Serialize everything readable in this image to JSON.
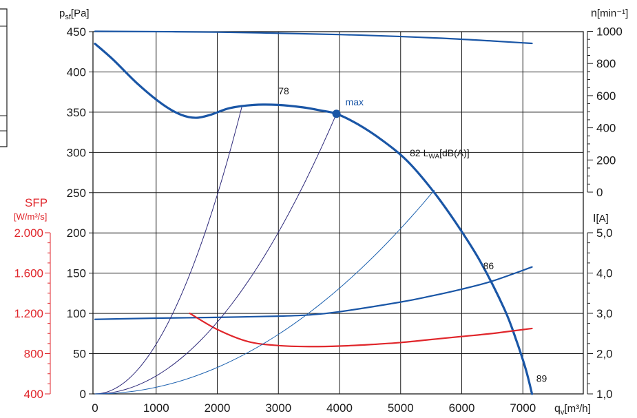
{
  "chart_data": {
    "type": "line",
    "colors": {
      "fan": "#1a56a6",
      "system": "#2e2a7a",
      "system_light": "#1f63b0",
      "sfp": "#e0262b",
      "axis": "#1a1a1a"
    },
    "axes": {
      "x": {
        "label_main": "q",
        "label_sub": "v",
        "label_unit": "[m³/h]",
        "range": [
          0,
          7500
        ],
        "ticks": [
          "0",
          "1000",
          "2000",
          "3000",
          "4000",
          "5000",
          "6000",
          "7000"
        ],
        "tick_values": [
          0,
          1000,
          2000,
          3000,
          4000,
          5000,
          6000,
          7000
        ]
      },
      "y_pressure": {
        "label_main": "p",
        "label_sub": "sf",
        "label_unit": "[Pa]",
        "range": [
          0,
          450
        ],
        "ticks": [
          "0",
          "50",
          "100",
          "150",
          "200",
          "250",
          "300",
          "350",
          "400",
          "450"
        ],
        "tick_values": [
          0,
          50,
          100,
          150,
          200,
          250,
          300,
          350,
          400,
          450
        ]
      },
      "y_speed": {
        "label_main": "n",
        "label_unit": "[min⁻¹]",
        "range": [
          0,
          1000
        ],
        "ticks": [
          "0",
          "200",
          "400",
          "600",
          "800",
          "1000"
        ],
        "tick_values": [
          0,
          200,
          400,
          600,
          800,
          1000
        ]
      },
      "y_current": {
        "label_main": "I",
        "label_unit": "[A]",
        "range": [
          1.0,
          5.0
        ],
        "ticks": [
          "1,0",
          "2,0",
          "3,0",
          "4,0",
          "5,0"
        ],
        "tick_values": [
          1,
          2,
          3,
          4,
          5
        ]
      },
      "y_sfp": {
        "label_main": "SFP",
        "label_unit": "[W/m³/s]",
        "range": [
          400,
          2000
        ],
        "ticks": [
          "400",
          "800",
          "1.200",
          "1.600",
          "2.000"
        ],
        "tick_values": [
          400,
          800,
          1200,
          1600,
          2000
        ]
      }
    },
    "series": [
      {
        "id": "fan_curve",
        "axis": "y_pressure",
        "x": [
          0,
          300,
          700,
          1100,
          1400,
          1650,
          1900,
          2200,
          2600,
          3000,
          3400,
          3700,
          3950,
          4300,
          4700,
          5100,
          5500,
          5900,
          6300,
          6700,
          6900,
          7050,
          7150
        ],
        "y": [
          435,
          415,
          385,
          360,
          347,
          343,
          347,
          355,
          359,
          359,
          356,
          352,
          348,
          335,
          315,
          290,
          255,
          213,
          165,
          105,
          65,
          30,
          0
        ]
      },
      {
        "id": "speed_curve",
        "axis": "y_speed",
        "x": [
          0,
          2000,
          4000,
          5500,
          6500,
          7150
        ],
        "y": [
          1000,
          995,
          980,
          960,
          940,
          925
        ]
      },
      {
        "id": "current_curve",
        "axis": "y_current",
        "x": [
          0,
          1000,
          2000,
          3000,
          3500,
          4000,
          5000,
          5500,
          6000,
          6500,
          7150
        ],
        "y": [
          2.85,
          2.88,
          2.9,
          2.93,
          2.96,
          3.04,
          3.28,
          3.43,
          3.6,
          3.8,
          4.15
        ]
      },
      {
        "id": "sfp_curve",
        "axis": "y_sfp",
        "x": [
          1550,
          2000,
          2500,
          3000,
          3500,
          4000,
          4500,
          5000,
          5500,
          6000,
          6500,
          7150
        ],
        "y": [
          1200,
          1040,
          920,
          880,
          870,
          875,
          890,
          910,
          940,
          970,
          1000,
          1050
        ]
      },
      {
        "id": "system_1",
        "axis": "y_pressure",
        "quadratic_through": [
          2400,
          356
        ],
        "style": "dark"
      },
      {
        "id": "system_2",
        "axis": "y_pressure",
        "quadratic_through": [
          3950,
          348
        ],
        "style": "dark"
      },
      {
        "id": "system_3",
        "axis": "y_pressure",
        "quadratic_through": [
          5550,
          253
        ],
        "style": "light"
      }
    ],
    "operating_point": {
      "x": 3950,
      "y": 348,
      "label": "max"
    },
    "annotations": [
      {
        "text": "78",
        "x": 3000,
        "y": 372
      },
      {
        "text": "82",
        "x": 5150,
        "y": 295
      },
      {
        "text_main": "L",
        "text_sub": "WA",
        "text_unit": "[dB(A)]",
        "x": 5370,
        "y": 295
      },
      {
        "text": "86",
        "x": 6350,
        "y": 155
      },
      {
        "text": "89",
        "x": 7220,
        "y": 15
      }
    ]
  }
}
